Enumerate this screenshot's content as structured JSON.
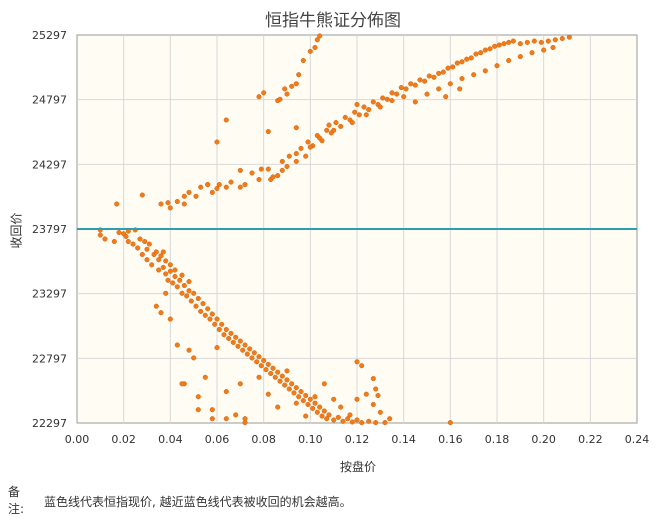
{
  "chart_data": {
    "type": "scatter",
    "title": "恒指牛熊证分佈图",
    "xlabel": "按盘价",
    "ylabel": "收回价",
    "xlim": [
      0,
      0.24
    ],
    "ylim": [
      22297,
      25297
    ],
    "x_ticks": [
      "0.00",
      "0.02",
      "0.04",
      "0.06",
      "0.08",
      "0.10",
      "0.12",
      "0.14",
      "0.16",
      "0.18",
      "0.20",
      "0.22",
      "0.24"
    ],
    "y_ticks": [
      "22297",
      "22797",
      "23297",
      "23797",
      "24297",
      "24797",
      "25297"
    ],
    "grid": true,
    "reference_line": {
      "y": 23797,
      "color": "#2a9fb3"
    },
    "point_color": "#f07b1a",
    "series": [
      {
        "points": [
          [
            0.01,
            23790
          ],
          [
            0.01,
            23750
          ],
          [
            0.012,
            23720
          ],
          [
            0.016,
            23700
          ],
          [
            0.018,
            23770
          ],
          [
            0.02,
            23760
          ],
          [
            0.021,
            23740
          ],
          [
            0.022,
            23780
          ],
          [
            0.022,
            23700
          ],
          [
            0.024,
            23680
          ],
          [
            0.025,
            23790
          ],
          [
            0.026,
            23650
          ],
          [
            0.027,
            23720
          ],
          [
            0.028,
            23600
          ],
          [
            0.029,
            23700
          ],
          [
            0.03,
            23560
          ],
          [
            0.03,
            23640
          ],
          [
            0.031,
            23680
          ],
          [
            0.032,
            23520
          ],
          [
            0.033,
            23600
          ],
          [
            0.034,
            23620
          ],
          [
            0.035,
            23480
          ],
          [
            0.035,
            23560
          ],
          [
            0.036,
            23590
          ],
          [
            0.037,
            23620
          ],
          [
            0.037,
            23500
          ],
          [
            0.038,
            23450
          ],
          [
            0.038,
            23550
          ],
          [
            0.039,
            23400
          ],
          [
            0.04,
            23470
          ],
          [
            0.04,
            23520
          ],
          [
            0.041,
            23380
          ],
          [
            0.042,
            23430
          ],
          [
            0.042,
            23480
          ],
          [
            0.043,
            23350
          ],
          [
            0.044,
            23400
          ],
          [
            0.045,
            23300
          ],
          [
            0.045,
            23440
          ],
          [
            0.046,
            23360
          ],
          [
            0.047,
            23280
          ],
          [
            0.048,
            23320
          ],
          [
            0.048,
            23390
          ],
          [
            0.049,
            23240
          ],
          [
            0.05,
            23300
          ],
          [
            0.051,
            23200
          ],
          [
            0.052,
            23260
          ],
          [
            0.053,
            23160
          ],
          [
            0.054,
            23220
          ],
          [
            0.055,
            23130
          ],
          [
            0.056,
            23180
          ],
          [
            0.057,
            23100
          ],
          [
            0.058,
            23140
          ],
          [
            0.059,
            23060
          ],
          [
            0.06,
            23100
          ],
          [
            0.061,
            23020
          ],
          [
            0.062,
            23060
          ],
          [
            0.063,
            22980
          ],
          [
            0.064,
            23020
          ],
          [
            0.065,
            22950
          ],
          [
            0.066,
            22990
          ],
          [
            0.067,
            22920
          ],
          [
            0.068,
            22960
          ],
          [
            0.069,
            22890
          ],
          [
            0.07,
            22930
          ],
          [
            0.071,
            22860
          ],
          [
            0.072,
            22900
          ],
          [
            0.073,
            22830
          ],
          [
            0.074,
            22870
          ],
          [
            0.075,
            22800
          ],
          [
            0.076,
            22840
          ],
          [
            0.077,
            22770
          ],
          [
            0.078,
            22810
          ],
          [
            0.079,
            22740
          ],
          [
            0.08,
            22780
          ],
          [
            0.081,
            22710
          ],
          [
            0.082,
            22750
          ],
          [
            0.083,
            22680
          ],
          [
            0.084,
            22720
          ],
          [
            0.085,
            22650
          ],
          [
            0.086,
            22690
          ],
          [
            0.087,
            22620
          ],
          [
            0.088,
            22660
          ],
          [
            0.089,
            22590
          ],
          [
            0.09,
            22630
          ],
          [
            0.091,
            22560
          ],
          [
            0.092,
            22600
          ],
          [
            0.093,
            22530
          ],
          [
            0.094,
            22570
          ],
          [
            0.095,
            22500
          ],
          [
            0.096,
            22540
          ],
          [
            0.097,
            22470
          ],
          [
            0.098,
            22510
          ],
          [
            0.099,
            22440
          ],
          [
            0.1,
            22480
          ],
          [
            0.101,
            22410
          ],
          [
            0.102,
            22450
          ],
          [
            0.103,
            22380
          ],
          [
            0.104,
            22420
          ],
          [
            0.105,
            22350
          ],
          [
            0.106,
            22390
          ],
          [
            0.107,
            22330
          ],
          [
            0.108,
            22360
          ],
          [
            0.11,
            22320
          ],
          [
            0.112,
            22340
          ],
          [
            0.114,
            22310
          ],
          [
            0.116,
            22330
          ],
          [
            0.118,
            22305
          ],
          [
            0.12,
            22320
          ],
          [
            0.122,
            22300
          ],
          [
            0.125,
            22310
          ],
          [
            0.128,
            22300
          ],
          [
            0.132,
            22300
          ],
          [
            0.16,
            22300
          ],
          [
            0.034,
            23200
          ],
          [
            0.036,
            23150
          ],
          [
            0.038,
            23300
          ],
          [
            0.04,
            23100
          ],
          [
            0.043,
            22900
          ],
          [
            0.046,
            22600
          ],
          [
            0.05,
            22800
          ],
          [
            0.052,
            22500
          ],
          [
            0.055,
            22650
          ],
          [
            0.058,
            22400
          ],
          [
            0.06,
            22880
          ],
          [
            0.064,
            22540
          ],
          [
            0.068,
            22360
          ],
          [
            0.07,
            22600
          ],
          [
            0.072,
            22300
          ],
          [
            0.078,
            22650
          ],
          [
            0.082,
            22520
          ],
          [
            0.086,
            22420
          ],
          [
            0.09,
            22700
          ],
          [
            0.094,
            22450
          ],
          [
            0.098,
            22350
          ],
          [
            0.102,
            22500
          ],
          [
            0.106,
            22600
          ],
          [
            0.11,
            22480
          ],
          [
            0.113,
            22420
          ],
          [
            0.117,
            22360
          ],
          [
            0.12,
            22480
          ],
          [
            0.124,
            22520
          ],
          [
            0.127,
            22440
          ],
          [
            0.13,
            22380
          ],
          [
            0.134,
            22330
          ],
          [
            0.12,
            22770
          ],
          [
            0.122,
            22740
          ],
          [
            0.127,
            22640
          ],
          [
            0.128,
            22560
          ],
          [
            0.129,
            22510
          ],
          [
            0.045,
            22600
          ],
          [
            0.048,
            22860
          ],
          [
            0.052,
            22400
          ],
          [
            0.058,
            22330
          ],
          [
            0.064,
            22330
          ],
          [
            0.072,
            22330
          ]
        ]
      },
      {
        "points": [
          [
            0.017,
            23990
          ],
          [
            0.028,
            24060
          ],
          [
            0.036,
            23990
          ],
          [
            0.039,
            24000
          ],
          [
            0.04,
            23960
          ],
          [
            0.043,
            24010
          ],
          [
            0.046,
            23990
          ],
          [
            0.048,
            24080
          ],
          [
            0.051,
            24050
          ],
          [
            0.053,
            24120
          ],
          [
            0.056,
            24140
          ],
          [
            0.058,
            24080
          ],
          [
            0.06,
            24110
          ],
          [
            0.061,
            24140
          ],
          [
            0.064,
            24120
          ],
          [
            0.066,
            24160
          ],
          [
            0.07,
            24120
          ],
          [
            0.072,
            24140
          ],
          [
            0.075,
            24230
          ],
          [
            0.078,
            24180
          ],
          [
            0.079,
            24260
          ],
          [
            0.082,
            24260
          ],
          [
            0.083,
            24180
          ],
          [
            0.086,
            24210
          ],
          [
            0.088,
            24320
          ],
          [
            0.09,
            24280
          ],
          [
            0.091,
            24360
          ],
          [
            0.094,
            24320
          ],
          [
            0.096,
            24420
          ],
          [
            0.098,
            24360
          ],
          [
            0.099,
            24470
          ],
          [
            0.101,
            24440
          ],
          [
            0.103,
            24520
          ],
          [
            0.105,
            24480
          ],
          [
            0.107,
            24560
          ],
          [
            0.109,
            24540
          ],
          [
            0.111,
            24620
          ],
          [
            0.113,
            24590
          ],
          [
            0.115,
            24660
          ],
          [
            0.117,
            24640
          ],
          [
            0.119,
            24700
          ],
          [
            0.121,
            24680
          ],
          [
            0.123,
            24740
          ],
          [
            0.125,
            24720
          ],
          [
            0.127,
            24780
          ],
          [
            0.129,
            24760
          ],
          [
            0.131,
            24810
          ],
          [
            0.133,
            24800
          ],
          [
            0.135,
            24850
          ],
          [
            0.137,
            24840
          ],
          [
            0.139,
            24890
          ],
          [
            0.141,
            24880
          ],
          [
            0.143,
            24920
          ],
          [
            0.145,
            24910
          ],
          [
            0.147,
            24950
          ],
          [
            0.149,
            24940
          ],
          [
            0.151,
            24980
          ],
          [
            0.153,
            24970
          ],
          [
            0.155,
            25000
          ],
          [
            0.157,
            25010
          ],
          [
            0.159,
            25040
          ],
          [
            0.161,
            25050
          ],
          [
            0.163,
            25080
          ],
          [
            0.165,
            25090
          ],
          [
            0.167,
            25110
          ],
          [
            0.169,
            25120
          ],
          [
            0.171,
            25150
          ],
          [
            0.173,
            25160
          ],
          [
            0.175,
            25180
          ],
          [
            0.177,
            25190
          ],
          [
            0.179,
            25210
          ],
          [
            0.181,
            25220
          ],
          [
            0.183,
            25230
          ],
          [
            0.185,
            25240
          ],
          [
            0.187,
            25250
          ],
          [
            0.19,
            25230
          ],
          [
            0.193,
            25240
          ],
          [
            0.196,
            25250
          ],
          [
            0.199,
            25240
          ],
          [
            0.202,
            25250
          ],
          [
            0.205,
            25260
          ],
          [
            0.208,
            25270
          ],
          [
            0.211,
            25280
          ],
          [
            0.204,
            25200
          ],
          [
            0.135,
            24790
          ],
          [
            0.14,
            24820
          ],
          [
            0.145,
            24780
          ],
          [
            0.15,
            24840
          ],
          [
            0.155,
            24880
          ],
          [
            0.16,
            24920
          ],
          [
            0.165,
            24960
          ],
          [
            0.17,
            24990
          ],
          [
            0.175,
            25020
          ],
          [
            0.18,
            25060
          ],
          [
            0.185,
            25100
          ],
          [
            0.19,
            25130
          ],
          [
            0.195,
            25160
          ],
          [
            0.2,
            25180
          ],
          [
            0.118,
            24620
          ],
          [
            0.124,
            24680
          ],
          [
            0.13,
            24740
          ],
          [
            0.11,
            24560
          ],
          [
            0.104,
            24500
          ],
          [
            0.1,
            24430
          ],
          [
            0.094,
            24380
          ],
          [
            0.088,
            24250
          ],
          [
            0.084,
            24200
          ],
          [
            0.12,
            24760
          ],
          [
            0.086,
            24790
          ],
          [
            0.087,
            24800
          ],
          [
            0.089,
            24880
          ],
          [
            0.09,
            24840
          ],
          [
            0.092,
            24900
          ],
          [
            0.094,
            24920
          ],
          [
            0.095,
            24990
          ],
          [
            0.097,
            25100
          ],
          [
            0.1,
            25170
          ],
          [
            0.102,
            25200
          ],
          [
            0.103,
            25260
          ],
          [
            0.104,
            25290
          ],
          [
            0.064,
            24640
          ],
          [
            0.078,
            24820
          ],
          [
            0.08,
            24850
          ],
          [
            0.07,
            24250
          ],
          [
            0.082,
            24550
          ],
          [
            0.094,
            24580
          ],
          [
            0.06,
            24470
          ],
          [
            0.056,
            24140
          ],
          [
            0.046,
            24050
          ],
          [
            0.108,
            24600
          ],
          [
            0.158,
            24820
          ],
          [
            0.164,
            24880
          ]
        ]
      }
    ]
  },
  "note": {
    "label": "备注:",
    "text": "蓝色线代表恒指现价, 越近蓝色线代表被收回的机会越高。"
  }
}
